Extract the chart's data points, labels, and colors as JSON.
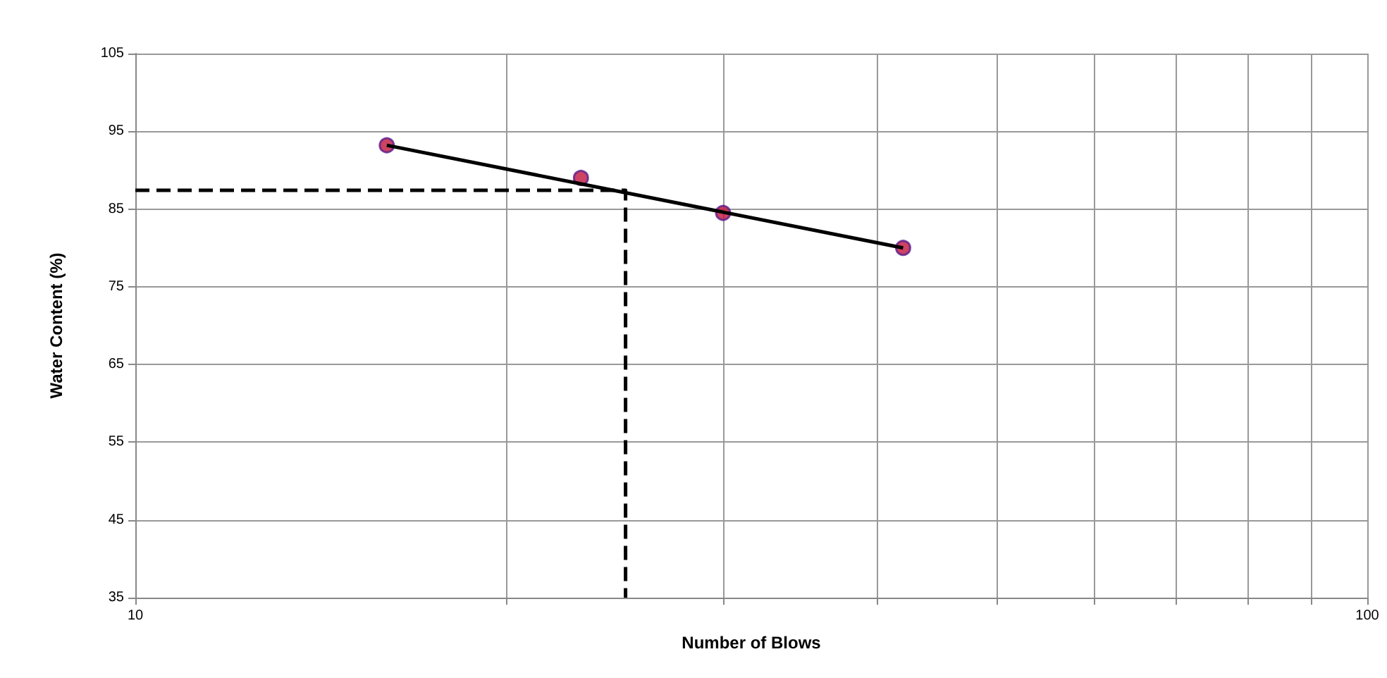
{
  "chart_data": {
    "type": "scatter",
    "xlabel": "Number of Blows",
    "ylabel": "Water Content (%)",
    "log": "x",
    "xlim": [
      10,
      100
    ],
    "xticks": [
      10,
      {
        "value": 20,
        "label": null
      },
      {
        "value": 30,
        "label": null
      },
      {
        "value": 40,
        "label": null
      },
      {
        "value": 50,
        "label": null
      },
      {
        "value": 60,
        "label": null
      },
      {
        "value": 70,
        "label": null
      },
      {
        "value": 80,
        "label": null
      },
      {
        "value": 90,
        "label": null
      },
      100
    ],
    "ylim": [
      35,
      105
    ],
    "yticks": [
      35,
      45,
      55,
      65,
      75,
      85,
      95,
      105
    ],
    "grid": true,
    "series": [
      {
        "type": "scatter",
        "color": "#c0143c",
        "marker": "circle",
        "x": [
          16,
          23,
          30,
          42
        ],
        "values": [
          93.2,
          89.0,
          84.5,
          80.0
        ]
      },
      {
        "type": "line",
        "color": "#000000",
        "marker": "none",
        "line_style": "solid",
        "x": [
          16,
          42
        ],
        "values": [
          93.2,
          80.0
        ]
      },
      {
        "type": "line",
        "color": "#000000",
        "marker": "none",
        "line_style": "dashed",
        "x": [
          10,
          25,
          25
        ],
        "values": [
          87.4,
          87.4,
          35
        ]
      }
    ]
  }
}
